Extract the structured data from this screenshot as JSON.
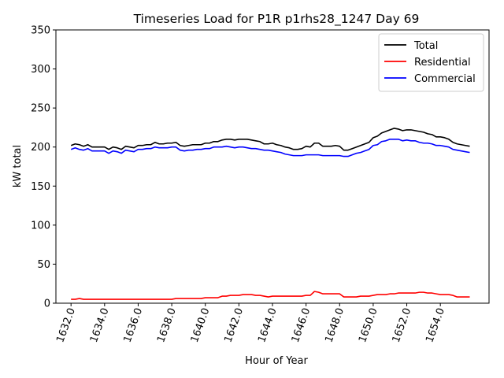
{
  "chart_data": {
    "type": "line",
    "title": "Timeseries Load for P1R p1rhs28_1247  Day 69",
    "xlabel": "Hour of Year",
    "ylabel": "kW total",
    "xlim": [
      1631.1,
      1656.9
    ],
    "ylim": [
      0,
      350
    ],
    "xticks": [
      1632,
      1634,
      1636,
      1638,
      1640,
      1642,
      1644,
      1646,
      1648,
      1650,
      1652,
      1654
    ],
    "xtick_labels": [
      "1632.0",
      "1634.0",
      "1636.0",
      "1638.0",
      "1640.0",
      "1642.0",
      "1644.0",
      "1646.0",
      "1648.0",
      "1650.0",
      "1652.0",
      "1654.0"
    ],
    "yticks": [
      0,
      50,
      100,
      150,
      200,
      250,
      300,
      350
    ],
    "ytick_labels": [
      "0",
      "50",
      "100",
      "150",
      "200",
      "250",
      "300",
      "350"
    ],
    "legend_position": "top-right",
    "grid": false,
    "x": [
      1632.0,
      1632.25,
      1632.5,
      1632.75,
      1633.0,
      1633.25,
      1633.5,
      1633.75,
      1634.0,
      1634.25,
      1634.5,
      1634.75,
      1635.0,
      1635.25,
      1635.5,
      1635.75,
      1636.0,
      1636.25,
      1636.5,
      1636.75,
      1637.0,
      1637.25,
      1637.5,
      1637.75,
      1638.0,
      1638.25,
      1638.5,
      1638.75,
      1639.0,
      1639.25,
      1639.5,
      1639.75,
      1640.0,
      1640.25,
      1640.5,
      1640.75,
      1641.0,
      1641.25,
      1641.5,
      1641.75,
      1642.0,
      1642.25,
      1642.5,
      1642.75,
      1643.0,
      1643.25,
      1643.5,
      1643.75,
      1644.0,
      1644.25,
      1644.5,
      1644.75,
      1645.0,
      1645.25,
      1645.5,
      1645.75,
      1646.0,
      1646.25,
      1646.5,
      1646.75,
      1647.0,
      1647.25,
      1647.5,
      1647.75,
      1648.0,
      1648.25,
      1648.5,
      1648.75,
      1649.0,
      1649.25,
      1649.5,
      1649.75,
      1650.0,
      1650.25,
      1650.5,
      1650.75,
      1651.0,
      1651.25,
      1651.5,
      1651.75,
      1652.0,
      1652.25,
      1652.5,
      1652.75,
      1653.0,
      1653.25,
      1653.5,
      1653.75,
      1654.0,
      1654.25,
      1654.5,
      1654.75,
      1655.0,
      1655.25,
      1655.5,
      1655.75
    ],
    "series": [
      {
        "name": "Total",
        "color": "#000000",
        "values": [
          202,
          204,
          203,
          201,
          203,
          200,
          200,
          200,
          200,
          197,
          200,
          199,
          197,
          201,
          200,
          199,
          202,
          202,
          203,
          203,
          206,
          204,
          204,
          205,
          205,
          206,
          202,
          201,
          202,
          203,
          203,
          203,
          205,
          205,
          207,
          207,
          209,
          210,
          210,
          209,
          210,
          210,
          210,
          209,
          208,
          207,
          204,
          204,
          205,
          203,
          202,
          200,
          199,
          197,
          197,
          198,
          201,
          200,
          205,
          205,
          201,
          201,
          201,
          202,
          201,
          196,
          196,
          198,
          200,
          202,
          204,
          206,
          212,
          214,
          218,
          220,
          222,
          224,
          223,
          221,
          222,
          222,
          221,
          220,
          219,
          217,
          216,
          213,
          213,
          212,
          210,
          206,
          204,
          203,
          202,
          201
        ]
      },
      {
        "name": "Residential",
        "color": "#ff0000",
        "values": [
          5,
          5,
          6,
          5,
          5,
          5,
          5,
          5,
          5,
          5,
          5,
          5,
          5,
          5,
          5,
          5,
          5,
          5,
          5,
          5,
          5,
          5,
          5,
          5,
          5,
          6,
          6,
          6,
          6,
          6,
          6,
          6,
          7,
          7,
          7,
          7,
          9,
          9,
          10,
          10,
          10,
          11,
          11,
          11,
          10,
          10,
          9,
          8,
          9,
          9,
          9,
          9,
          9,
          9,
          9,
          9,
          10,
          10,
          15,
          14,
          12,
          12,
          12,
          12,
          12,
          8,
          8,
          8,
          8,
          9,
          9,
          9,
          10,
          11,
          11,
          11,
          12,
          12,
          13,
          13,
          13,
          13,
          13,
          14,
          14,
          13,
          13,
          12,
          11,
          11,
          11,
          10,
          8,
          8,
          8,
          8
        ]
      },
      {
        "name": "Commercial",
        "color": "#0000ff",
        "values": [
          197,
          199,
          197,
          196,
          198,
          195,
          195,
          195,
          195,
          192,
          195,
          194,
          192,
          196,
          195,
          194,
          197,
          197,
          198,
          198,
          200,
          199,
          199,
          199,
          200,
          200,
          196,
          195,
          196,
          196,
          197,
          197,
          198,
          198,
          200,
          200,
          200,
          201,
          200,
          199,
          200,
          200,
          199,
          198,
          198,
          197,
          196,
          196,
          195,
          194,
          193,
          191,
          190,
          189,
          189,
          189,
          190,
          190,
          190,
          190,
          189,
          189,
          189,
          189,
          189,
          188,
          188,
          190,
          192,
          193,
          195,
          197,
          202,
          203,
          207,
          208,
          210,
          210,
          210,
          208,
          209,
          208,
          208,
          206,
          205,
          205,
          204,
          202,
          202,
          201,
          200,
          197,
          196,
          195,
          194,
          193
        ]
      }
    ]
  }
}
